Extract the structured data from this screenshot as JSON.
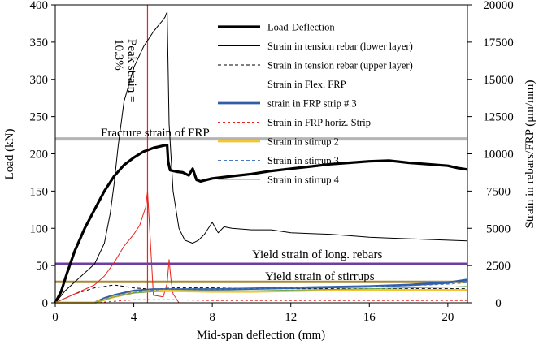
{
  "chart_data": {
    "type": "line",
    "xlabel": "Mid-span deflection  (mm)",
    "ylabel_left": "Load (kN)",
    "ylabel_right": "Strain in rebars/FRP (μm/mm)",
    "xlim": [
      0,
      21
    ],
    "ylim_left": [
      0,
      400
    ],
    "ylim_right": [
      0,
      20000
    ],
    "x_ticks": [
      0,
      4,
      8,
      12,
      16,
      20
    ],
    "y_left_ticks": [
      0,
      50,
      100,
      150,
      200,
      250,
      300,
      350,
      400
    ],
    "y_right_ticks": [
      0,
      2500,
      5000,
      7500,
      10000,
      12500,
      15000,
      17500,
      20000
    ],
    "y_right_tick_labels": [
      "0",
      "2500",
      "5000",
      "7500",
      "10000",
      "12500",
      "15000",
      "17500",
      "20000"
    ],
    "grid": false,
    "legend_position": "top-right",
    "colors": {
      "load_deflection": "#000000",
      "tension_lower": "#000000",
      "tension_upper": "#000000",
      "flex_frp": "#e8231b",
      "frp_strip3": "#2f5da8",
      "frp_horiz": "#e8231b",
      "stirrup2": "#f5c431",
      "stirrup3": "#4a78c2",
      "stirrup4": "#6aa84f",
      "fracture_line": "#b4b4b4",
      "yield_long_line": "#6b3fa0",
      "yield_stirrup_line": "#a88a3a",
      "peak_line": "#e8231b"
    },
    "series": [
      {
        "name": "Load-Deflection",
        "axis": "left",
        "style": "thick-solid",
        "x": [
          0,
          0.3,
          0.6,
          1,
          1.5,
          2,
          2.5,
          3,
          3.5,
          4,
          4.5,
          5,
          5.5,
          5.7,
          5.75,
          5.85,
          6.2,
          6.5,
          6.8,
          7,
          7.2,
          7.4,
          8,
          9,
          10,
          11,
          12,
          13,
          14,
          15,
          16,
          17,
          18,
          19,
          20,
          20.5,
          21
        ],
        "values": [
          0,
          15,
          40,
          70,
          100,
          125,
          150,
          170,
          185,
          195,
          203,
          208,
          211,
          212,
          190,
          178,
          176,
          175,
          171,
          180,
          165,
          163,
          167,
          170,
          173,
          177,
          180,
          183,
          186,
          188,
          190,
          191,
          188,
          186,
          184,
          181,
          179
        ]
      },
      {
        "name": "Strain in tension rebar (lower layer)",
        "axis": "right",
        "style": "thin-solid",
        "x": [
          0,
          0.5,
          1,
          1.5,
          2,
          2.5,
          2.8,
          3,
          3.2,
          3.5,
          4,
          4.5,
          5,
          5.3,
          5.5,
          5.6,
          5.65,
          5.7,
          5.8,
          6,
          6.3,
          6.6,
          7,
          7.3,
          7.6,
          8,
          8.3,
          8.6,
          9,
          10,
          11,
          12,
          13,
          14,
          15,
          16,
          17,
          18,
          19,
          20,
          21
        ],
        "values": [
          0,
          800,
          1400,
          2000,
          2600,
          4000,
          6000,
          8000,
          10500,
          13500,
          15800,
          17200,
          18200,
          18700,
          19000,
          19200,
          19400,
          19500,
          12000,
          7500,
          5000,
          4200,
          4000,
          4200,
          4600,
          5400,
          4700,
          5100,
          5000,
          4900,
          4900,
          4700,
          4650,
          4600,
          4500,
          4400,
          4350,
          4300,
          4250,
          4200,
          4150
        ]
      },
      {
        "name": "Strain in tension rebar (upper layer)",
        "axis": "right",
        "style": "dashed",
        "x": [
          0,
          1,
          2,
          3,
          4,
          5,
          6,
          8,
          10,
          12,
          14,
          16,
          18,
          20,
          21
        ],
        "values": [
          0,
          600,
          1000,
          1200,
          1000,
          900,
          1000,
          1000,
          950,
          950,
          950,
          950,
          950,
          950,
          950
        ]
      },
      {
        "name": "Strain in Flex. FRP",
        "axis": "right",
        "style": "thin-solid",
        "x": [
          0,
          1,
          2,
          2.5,
          3,
          3.5,
          4,
          4.3,
          4.5,
          4.6,
          4.7,
          5,
          5.5,
          5.7,
          5.8,
          5.9,
          6,
          6.3
        ],
        "values": [
          0,
          600,
          1200,
          1800,
          2700,
          3800,
          4600,
          5200,
          6000,
          6400,
          7500,
          500,
          400,
          1300,
          2900,
          1500,
          600,
          0
        ]
      },
      {
        "name": "strain in FRP strip # 3",
        "axis": "right",
        "style": "thick-solid",
        "x": [
          0,
          2,
          2.5,
          3,
          4,
          5,
          6,
          8,
          10,
          12,
          14,
          16,
          18,
          20,
          21
        ],
        "values": [
          0,
          0,
          300,
          500,
          800,
          900,
          900,
          900,
          950,
          1000,
          1050,
          1100,
          1200,
          1350,
          1550
        ]
      },
      {
        "name": "Strain in FRP horiz. Strip",
        "axis": "right",
        "style": "dashed",
        "x": [
          0,
          2,
          3,
          4,
          5,
          6,
          8,
          10,
          12,
          14,
          16,
          18,
          20,
          21
        ],
        "values": [
          0,
          0,
          100,
          200,
          200,
          200,
          150,
          150,
          150,
          150,
          150,
          150,
          150,
          150
        ]
      },
      {
        "name": "Strain in stirrup 2",
        "axis": "right",
        "style": "thick-solid",
        "x": [
          0,
          2,
          3,
          4,
          5,
          6,
          8,
          10,
          12,
          14,
          16,
          18,
          20,
          21
        ],
        "values": [
          0,
          0,
          400,
          700,
          800,
          800,
          750,
          750,
          800,
          850,
          850,
          850,
          850,
          850
        ]
      },
      {
        "name": "Strain in stirrup 3",
        "axis": "right",
        "style": "dashed",
        "x": [
          0,
          2,
          3,
          4,
          5,
          6,
          8,
          10,
          12,
          14,
          16,
          18,
          20,
          21
        ],
        "values": [
          0,
          0,
          500,
          700,
          850,
          950,
          900,
          950,
          1000,
          1050,
          1100,
          1150,
          1250,
          1350
        ]
      },
      {
        "name": "Strain in stirrup 4",
        "axis": "right",
        "style": "thin-solid",
        "x": [
          0,
          2,
          3,
          4,
          5,
          6,
          8,
          10,
          12,
          14,
          16,
          18,
          20,
          21
        ],
        "values": [
          0,
          0,
          400,
          650,
          750,
          800,
          800,
          800,
          850,
          900,
          950,
          1000,
          1050,
          1100
        ]
      }
    ],
    "reference_lines": [
      {
        "label": "Fracture strain of FRP",
        "orientation": "horizontal",
        "axis": "right",
        "value": 11000,
        "color_key": "fracture_line"
      },
      {
        "label": "Yield strain of long. rebars",
        "orientation": "horizontal",
        "axis": "right",
        "value": 2600,
        "color_key": "yield_long_line"
      },
      {
        "label": "Yield strain of stirrups",
        "orientation": "horizontal",
        "axis": "right",
        "value": 1400,
        "color_key": "yield_stirrup_line"
      },
      {
        "label": "Peak strain = 10.3%",
        "orientation": "vertical",
        "value": 4.7,
        "color_key": "peak_line"
      }
    ]
  }
}
